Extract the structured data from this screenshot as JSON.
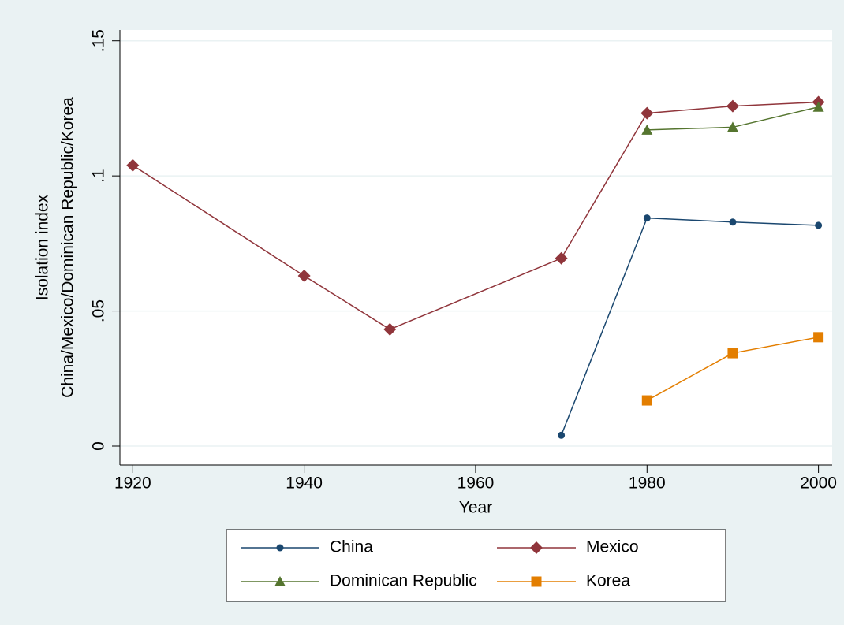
{
  "chart_data": {
    "type": "line",
    "x_label": "Year",
    "y_label": [
      "Isolation index",
      "China/Mexico/Dominican Republic/Korea"
    ],
    "x": [
      1920,
      1940,
      1950,
      1970,
      1980,
      1990,
      2000
    ],
    "series": [
      {
        "name": "China",
        "color": "#1a476f",
        "marker": "circle",
        "values": [
          null,
          null,
          null,
          0.004,
          0.0844,
          0.0829,
          0.0817
        ]
      },
      {
        "name": "Mexico",
        "color": "#90353b",
        "marker": "diamond",
        "values": [
          0.1039,
          0.063,
          0.0432,
          0.0695,
          0.1232,
          0.1258,
          0.1273
        ]
      },
      {
        "name": "Dominican Republic",
        "color": "#55752f",
        "marker": "triangle",
        "values": [
          null,
          null,
          null,
          null,
          0.117,
          0.118,
          0.1255
        ]
      },
      {
        "name": "Korea",
        "color": "#e37e00",
        "marker": "square",
        "values": [
          null,
          null,
          null,
          null,
          0.0169,
          0.0344,
          0.0403
        ]
      }
    ],
    "xlim": [
      1918.5,
      2001.6
    ],
    "ylim": [
      -0.007,
      0.154
    ],
    "xticks": [
      1920,
      1940,
      1960,
      1980,
      2000
    ],
    "yticks": [
      0,
      {
        "value": 0.05,
        "label": ".05"
      },
      {
        "value": 0.1,
        "label": ".1"
      },
      {
        "value": 0.15,
        "label": ".15"
      }
    ],
    "grid": true,
    "legend": "bottom"
  }
}
